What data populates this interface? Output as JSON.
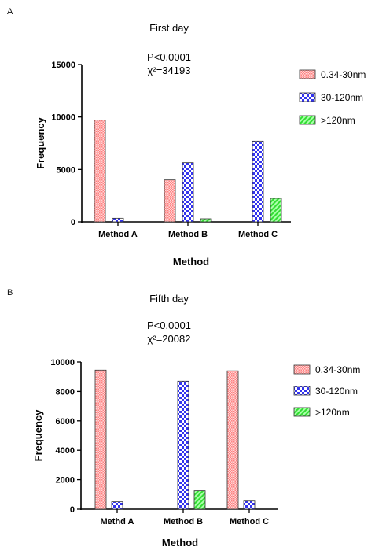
{
  "chart_data": [
    {
      "panel_label": "A",
      "type": "bar",
      "title": "First day",
      "annotation": [
        "P<0.0001",
        "χ²=34193"
      ],
      "categories": [
        "Method A",
        "Method B",
        "Method C"
      ],
      "series": [
        {
          "name": "0.34-30nm",
          "values": [
            9700,
            4000,
            0
          ],
          "color": "#ff8080"
        },
        {
          "name": "30-120nm",
          "values": [
            350,
            5650,
            7700
          ],
          "color": "#3333ee"
        },
        {
          "name": ">120nm",
          "values": [
            0,
            300,
            2250
          ],
          "color": "#33dd33"
        }
      ],
      "xlabel": "Method",
      "ylabel": "Frequency",
      "ylim": [
        0,
        15000
      ],
      "yticks": [
        0,
        5000,
        10000,
        15000
      ],
      "grid": false,
      "legend_position": "right"
    },
    {
      "panel_label": "B",
      "type": "bar",
      "title": "Fifth day",
      "annotation": [
        "P<0.0001",
        "χ²=20082"
      ],
      "categories": [
        "Methd A",
        "Method B",
        "Method C"
      ],
      "series": [
        {
          "name": "0.34-30nm",
          "values": [
            9450,
            0,
            9400
          ],
          "color": "#ff8080"
        },
        {
          "name": "30-120nm",
          "values": [
            500,
            8700,
            550
          ],
          "color": "#3333ee"
        },
        {
          "name": ">120nm",
          "values": [
            0,
            1250,
            0
          ],
          "color": "#33dd33"
        }
      ],
      "xlabel": "Method",
      "ylabel": "Frequency",
      "ylim": [
        0,
        10000
      ],
      "yticks": [
        0,
        2000,
        4000,
        6000,
        8000,
        10000
      ],
      "grid": false,
      "legend_position": "right"
    }
  ]
}
